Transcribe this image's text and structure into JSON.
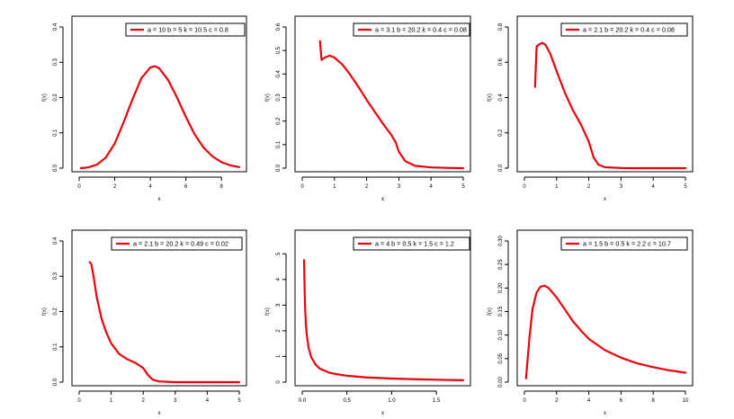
{
  "colors": {
    "curve": "#e8000b",
    "axis": "#000000",
    "background": "#ffffff"
  },
  "chart_data": [
    {
      "type": "line",
      "xlabel": "x",
      "ylabel": "f(x)",
      "xlim": [
        0,
        9
      ],
      "ylim": [
        0,
        0.4
      ],
      "xticks": [
        "0",
        "2",
        "4",
        "6",
        "8"
      ],
      "xtick_values": [
        0,
        2,
        4,
        6,
        8
      ],
      "yticks": [
        "0.0",
        "0.1",
        "0.2",
        "0.3",
        "0.4"
      ],
      "ytick_values": [
        0,
        0.1,
        0.2,
        0.3,
        0.4
      ],
      "legend": "a = 10  b = 5  k = 10.5  c = 0.8",
      "legend_position": "top-right",
      "series": [
        {
          "x": [
            0.1,
            0.5,
            1,
            1.5,
            2,
            2.5,
            3,
            3.5,
            4,
            4.25,
            4.5,
            5,
            5.5,
            6,
            6.5,
            7,
            7.5,
            8,
            8.5,
            9
          ],
          "y": [
            0.0,
            0.002,
            0.01,
            0.03,
            0.07,
            0.13,
            0.195,
            0.255,
            0.285,
            0.289,
            0.283,
            0.25,
            0.2,
            0.145,
            0.095,
            0.058,
            0.033,
            0.017,
            0.008,
            0.003
          ]
        }
      ]
    },
    {
      "type": "line",
      "xlabel": "x",
      "ylabel": "f(x)",
      "xlim": [
        0,
        5
      ],
      "ylim": [
        0,
        0.6
      ],
      "xticks": [
        "0",
        "1",
        "2",
        "3",
        "4",
        "5"
      ],
      "xtick_values": [
        0,
        1,
        2,
        3,
        4,
        5
      ],
      "yticks": [
        "0.0",
        "0.1",
        "0.2",
        "0.3",
        "0.4",
        "0.5",
        "0.6"
      ],
      "ytick_values": [
        0,
        0.1,
        0.2,
        0.3,
        0.4,
        0.5,
        0.6
      ],
      "legend": "a = 3.1  b = 20.2  k = 0.4  c = 0.08",
      "legend_position": "top-right",
      "series": [
        {
          "x": [
            0.55,
            0.6,
            0.7,
            0.85,
            1,
            1.25,
            1.5,
            1.75,
            2,
            2.25,
            2.5,
            2.75,
            2.9,
            3,
            3.2,
            3.5,
            4,
            4.5,
            5
          ],
          "y": [
            0.54,
            0.46,
            0.47,
            0.478,
            0.47,
            0.44,
            0.395,
            0.345,
            0.29,
            0.24,
            0.19,
            0.145,
            0.11,
            0.07,
            0.03,
            0.01,
            0.003,
            0.001,
            0.0
          ]
        }
      ]
    },
    {
      "type": "line",
      "xlabel": "x",
      "ylabel": "f(x)",
      "xlim": [
        0,
        5
      ],
      "ylim": [
        0,
        0.8
      ],
      "xticks": [
        "0",
        "1",
        "2",
        "3",
        "4",
        "5"
      ],
      "xtick_values": [
        0,
        1,
        2,
        3,
        4,
        5
      ],
      "yticks": [
        "0.0",
        "0.2",
        "0.4",
        "0.6",
        "0.8"
      ],
      "ytick_values": [
        0,
        0.2,
        0.4,
        0.6,
        0.8
      ],
      "legend": "a = 2.1  b = 20.2  k = 0.4  c = 0.08",
      "legend_position": "top-right",
      "series": [
        {
          "x": [
            0.33,
            0.38,
            0.45,
            0.55,
            0.65,
            0.8,
            1,
            1.25,
            1.5,
            1.75,
            2,
            2.15,
            2.3,
            2.5,
            3,
            3.5,
            4,
            4.5,
            5
          ],
          "y": [
            0.46,
            0.69,
            0.7,
            0.71,
            0.7,
            0.65,
            0.55,
            0.43,
            0.33,
            0.25,
            0.15,
            0.06,
            0.02,
            0.005,
            0.001,
            0.0,
            0.0,
            0.0,
            0.0
          ]
        }
      ]
    },
    {
      "type": "line",
      "xlabel": "x",
      "ylabel": "f(x)",
      "xlim": [
        0,
        5
      ],
      "ylim": [
        0,
        0.4
      ],
      "xticks": [
        "0",
        "1",
        "2",
        "3",
        "4",
        "5"
      ],
      "xtick_values": [
        0,
        1,
        2,
        3,
        4,
        5
      ],
      "yticks": [
        "0.0",
        "0.1",
        "0.2",
        "0.3",
        "0.4"
      ],
      "ytick_values": [
        0,
        0.1,
        0.2,
        0.3,
        0.4
      ],
      "legend": "a = 2.1  b = 20.2  k = 0.49  c = 0.02",
      "legend_position": "top-right",
      "series": [
        {
          "x": [
            0.33,
            0.38,
            0.45,
            0.55,
            0.7,
            0.85,
            1,
            1.25,
            1.5,
            1.75,
            2,
            2.15,
            2.3,
            2.5,
            3,
            3.5,
            4,
            4.5,
            5
          ],
          "y": [
            0.34,
            0.335,
            0.3,
            0.24,
            0.18,
            0.14,
            0.11,
            0.08,
            0.065,
            0.055,
            0.04,
            0.02,
            0.007,
            0.002,
            0.0,
            0.0,
            0.0,
            0.0,
            0.0
          ]
        }
      ]
    },
    {
      "type": "line",
      "xlabel": "x",
      "ylabel": "f(x)",
      "xlim": [
        0,
        1.8
      ],
      "ylim": [
        0,
        5.5
      ],
      "xticks": [
        "0.0",
        "0.5",
        "1.0",
        "1.5"
      ],
      "xtick_values": [
        0,
        0.5,
        1.0,
        1.5
      ],
      "yticks": [
        "0",
        "1",
        "2",
        "3",
        "4",
        "5"
      ],
      "ytick_values": [
        0,
        1,
        2,
        3,
        4,
        5
      ],
      "legend": "a = 4  b = 0.5  k = 1.5  c = 1.2",
      "legend_position": "top-right",
      "series": [
        {
          "x": [
            0.02,
            0.03,
            0.04,
            0.05,
            0.07,
            0.1,
            0.15,
            0.2,
            0.3,
            0.4,
            0.5,
            0.7,
            1.0,
            1.3,
            1.5,
            1.8
          ],
          "y": [
            4.75,
            3.1,
            2.3,
            1.85,
            1.35,
            0.98,
            0.68,
            0.52,
            0.37,
            0.3,
            0.25,
            0.19,
            0.14,
            0.11,
            0.095,
            0.075
          ]
        }
      ]
    },
    {
      "type": "line",
      "xlabel": "x",
      "ylabel": "f(x)",
      "xlim": [
        0,
        10
      ],
      "ylim": [
        0,
        0.3
      ],
      "xticks": [
        "0",
        "2",
        "4",
        "6",
        "8",
        "10"
      ],
      "xtick_values": [
        0,
        2,
        4,
        6,
        8,
        10
      ],
      "yticks": [
        "0.00",
        "0.05",
        "0.10",
        "0.15",
        "0.20",
        "0.25",
        "0.30"
      ],
      "ytick_values": [
        0,
        0.05,
        0.1,
        0.15,
        0.2,
        0.25,
        0.3
      ],
      "legend": "a = 1.5  b = 0.5  k = 2.2  c = 10.7",
      "legend_position": "top-right",
      "series": [
        {
          "x": [
            0.1,
            0.3,
            0.5,
            0.75,
            1,
            1.25,
            1.5,
            2,
            2.5,
            3,
            3.5,
            4,
            5,
            6,
            7,
            8,
            9,
            10
          ],
          "y": [
            0.008,
            0.09,
            0.155,
            0.19,
            0.203,
            0.205,
            0.2,
            0.18,
            0.155,
            0.13,
            0.11,
            0.092,
            0.068,
            0.052,
            0.04,
            0.032,
            0.025,
            0.02
          ]
        }
      ]
    }
  ]
}
